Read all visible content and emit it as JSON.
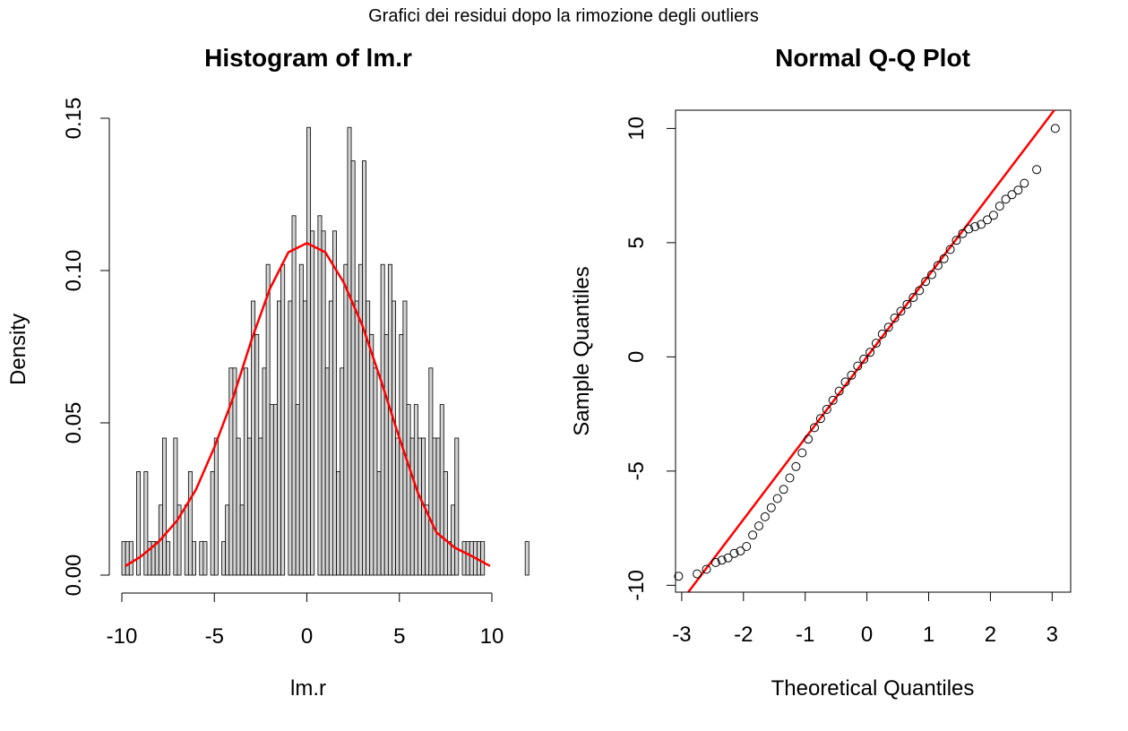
{
  "figure_title": "Grafici dei residui dopo la rimozione degli outliers",
  "colors": {
    "bar_fill": "#d3d3d3",
    "bar_stroke": "#000000",
    "density_curve": "#ff0000",
    "qq_line": "#ff0000",
    "qq_point": "#000000"
  },
  "chart_data": [
    {
      "type": "bar",
      "subtype": "histogram",
      "title": "Histogram of lm.r",
      "xlabel": "lm.r",
      "ylabel": "Density",
      "xlim": [
        -10,
        10
      ],
      "ylim": [
        0,
        0.15
      ],
      "x_ticks": [
        -10,
        -5,
        0,
        5,
        10
      ],
      "x_tick_labels": [
        "-10",
        "-5",
        "0",
        "5",
        "10"
      ],
      "y_ticks": [
        0.0,
        0.05,
        0.1,
        0.15
      ],
      "y_tick_labels": [
        "0.00",
        "0.05",
        "0.10",
        "0.15"
      ],
      "bin_start": -10,
      "bin_width": 0.2,
      "values": [
        0.011,
        0.011,
        0.011,
        0.0,
        0.034,
        0.0,
        0.034,
        0.011,
        0.011,
        0.011,
        0.023,
        0.045,
        0.011,
        0.0,
        0.045,
        0.023,
        0.0,
        0.023,
        0.034,
        0.011,
        0.0,
        0.011,
        0.011,
        0.0,
        0.034,
        0.045,
        0.0,
        0.011,
        0.023,
        0.068,
        0.068,
        0.045,
        0.023,
        0.068,
        0.045,
        0.09,
        0.079,
        0.045,
        0.068,
        0.102,
        0.056,
        0.056,
        0.09,
        0.102,
        0.0,
        0.09,
        0.118,
        0.056,
        0.102,
        0.09,
        0.147,
        0.113,
        0.0,
        0.118,
        0.113,
        0.068,
        0.09,
        0.113,
        0.034,
        0.068,
        0.102,
        0.147,
        0.136,
        0.09,
        0.102,
        0.136,
        0.09,
        0.079,
        0.068,
        0.034,
        0.102,
        0.079,
        0.102,
        0.09,
        0.045,
        0.079,
        0.09,
        0.056,
        0.045,
        0.056,
        0.045,
        0.045,
        0.023,
        0.068,
        0.045,
        0.045,
        0.056,
        0.034,
        0.011,
        0.023,
        0.045,
        0.0,
        0.011,
        0.011,
        0.011,
        0.011,
        0.011,
        0.011,
        0.0,
        0.0,
        0.0,
        0.0,
        0.0,
        0.0,
        0.0,
        0.0,
        0.0,
        0.0,
        0.0,
        0.011
      ],
      "density_curve": {
        "x": [
          -9.8,
          -9.0,
          -8.0,
          -7.0,
          -6.0,
          -5.0,
          -4.0,
          -3.0,
          -2.0,
          -1.0,
          0.0,
          1.0,
          2.0,
          3.0,
          4.0,
          5.0,
          6.0,
          7.0,
          8.0,
          9.0,
          9.9
        ],
        "y": [
          0.003,
          0.006,
          0.011,
          0.018,
          0.028,
          0.042,
          0.058,
          0.077,
          0.094,
          0.106,
          0.109,
          0.106,
          0.096,
          0.082,
          0.064,
          0.045,
          0.027,
          0.014,
          0.009,
          0.006,
          0.003
        ]
      }
    },
    {
      "type": "scatter",
      "subtype": "qq",
      "title": "Normal Q-Q Plot",
      "xlabel": "Theoretical Quantiles",
      "ylabel": "Sample Quantiles",
      "xlim": [
        -3.1,
        3.3
      ],
      "ylim": [
        -10.3,
        10.8
      ],
      "x_ticks": [
        -3,
        -2,
        -1,
        0,
        1,
        2,
        3
      ],
      "x_tick_labels": [
        "-3",
        "-2",
        "-1",
        "0",
        "1",
        "2",
        "3"
      ],
      "y_ticks": [
        -10,
        -5,
        0,
        5,
        10
      ],
      "y_tick_labels": [
        "-10",
        "-5",
        "0",
        "5",
        "10"
      ],
      "qq_line": {
        "intercept": 0.0,
        "slope": 3.56
      },
      "theoretical_quantiles": [
        -3.05,
        -2.75,
        -2.6,
        -2.45,
        -2.35,
        -2.25,
        -2.15,
        -2.05,
        -1.95,
        -1.85,
        -1.75,
        -1.65,
        -1.55,
        -1.45,
        -1.35,
        -1.25,
        -1.15,
        -1.05,
        -0.95,
        -0.85,
        -0.75,
        -0.65,
        -0.55,
        -0.45,
        -0.35,
        -0.25,
        -0.15,
        -0.05,
        0.05,
        0.15,
        0.25,
        0.35,
        0.45,
        0.55,
        0.65,
        0.75,
        0.85,
        0.95,
        1.05,
        1.15,
        1.25,
        1.35,
        1.45,
        1.55,
        1.65,
        1.75,
        1.85,
        1.95,
        2.05,
        2.15,
        2.25,
        2.35,
        2.45,
        2.55,
        2.75,
        3.05
      ],
      "sample_quantiles": [
        -9.6,
        -9.5,
        -9.3,
        -9.0,
        -8.9,
        -8.8,
        -8.6,
        -8.5,
        -8.3,
        -7.8,
        -7.4,
        -7.0,
        -6.6,
        -6.2,
        -5.8,
        -5.3,
        -4.8,
        -4.2,
        -3.6,
        -3.1,
        -2.7,
        -2.3,
        -1.9,
        -1.5,
        -1.1,
        -0.8,
        -0.4,
        -0.1,
        0.2,
        0.6,
        1.0,
        1.3,
        1.7,
        2.0,
        2.3,
        2.6,
        2.9,
        3.3,
        3.6,
        4.0,
        4.3,
        4.7,
        5.1,
        5.4,
        5.6,
        5.7,
        5.8,
        6.0,
        6.2,
        6.6,
        6.9,
        7.1,
        7.3,
        7.6,
        8.2,
        10.0
      ]
    }
  ]
}
